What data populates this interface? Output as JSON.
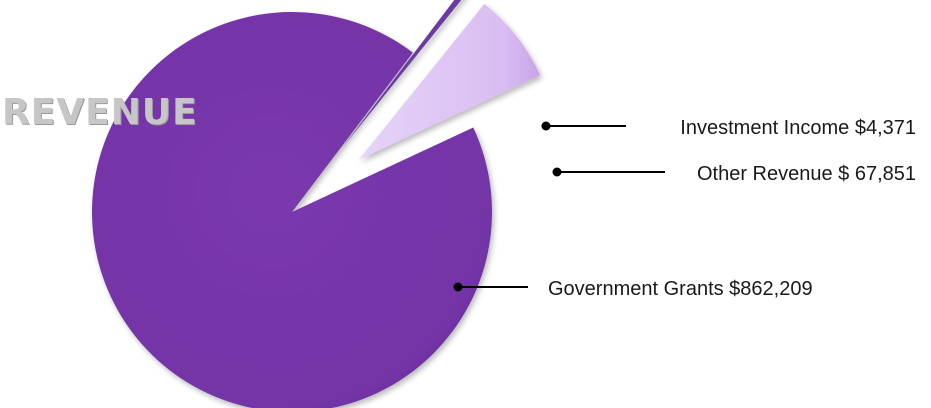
{
  "chart_data": {
    "type": "pie",
    "title": "REVENUE",
    "slices": [
      {
        "name": "Government Grants",
        "value": 862209,
        "value_label": "$862,209",
        "color": "#7334a6"
      },
      {
        "name": "Investment Income",
        "value": 4371,
        "value_label": "$4,371",
        "color": "#6a3aa0"
      },
      {
        "name": "Other Revenue",
        "value": 67851,
        "value_label": "$ 67,851",
        "color": "#dcc2f4"
      }
    ],
    "legend": "none",
    "labels": "callouts-right"
  }
}
